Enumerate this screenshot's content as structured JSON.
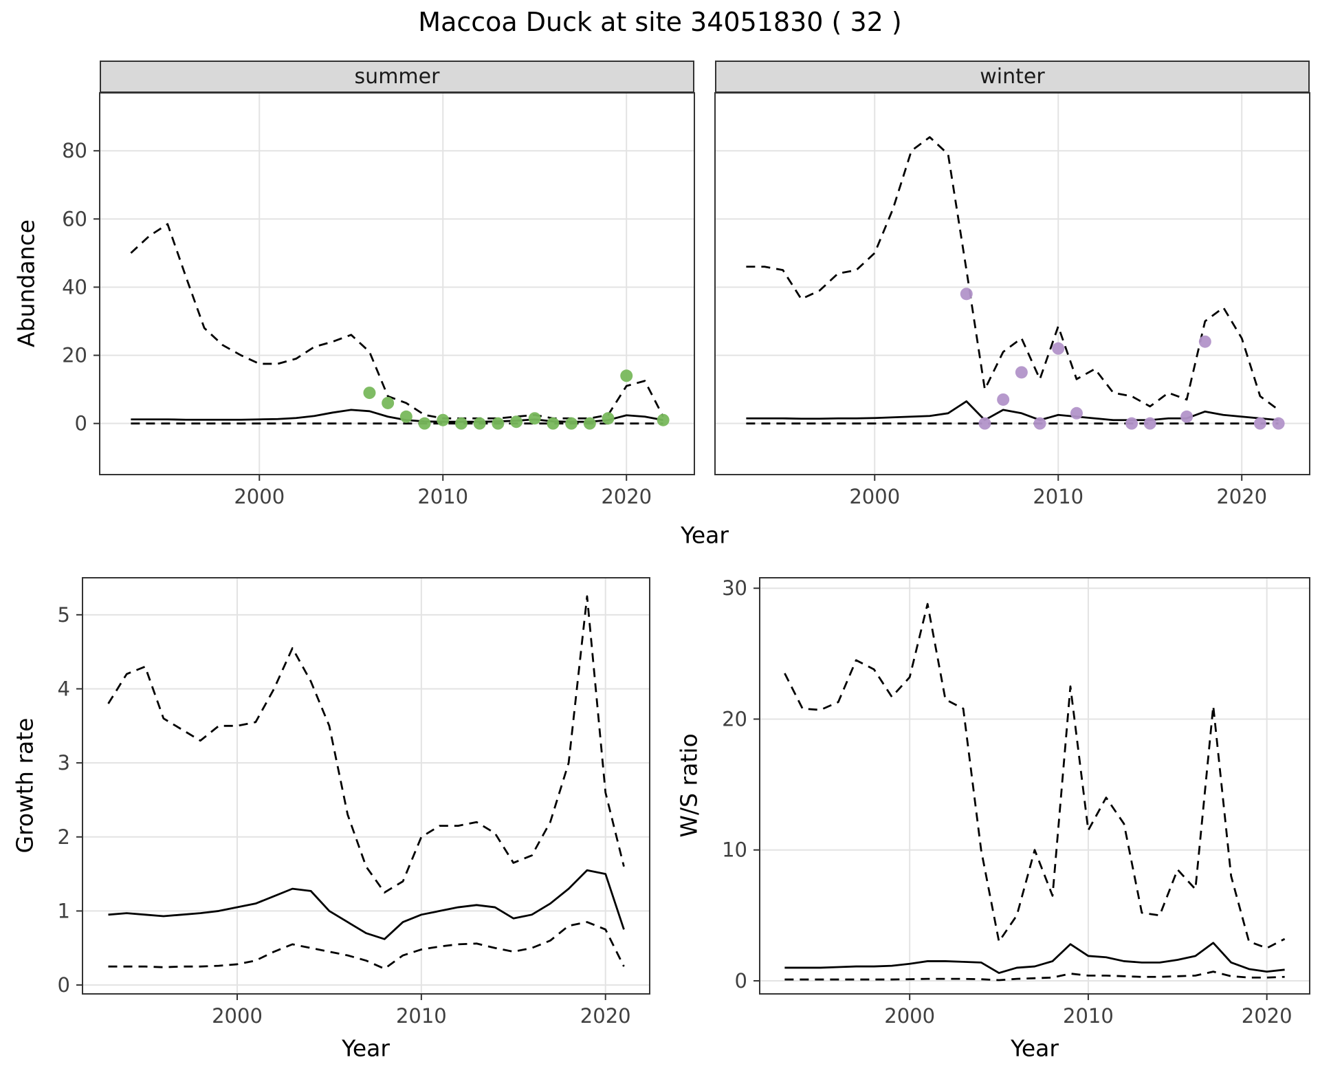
{
  "title": "Maccoa Duck at site 34051830 ( 32 )",
  "facets": {
    "summer": "summer",
    "winter": "winter"
  },
  "colors": {
    "line": "#000000",
    "grid": "#e3e3e3",
    "axis": "#333333",
    "tick_text": "#404040",
    "strip_bg": "#d9d9d9",
    "strip_border": "#333333",
    "summer_point": "#78b85c",
    "winter_point": "#b294c9"
  },
  "chart_data": [
    {
      "id": "abundance-summer",
      "type": "line",
      "facet": "summer",
      "ylabel": "Abundance",
      "xlabel": "Year",
      "xlim": [
        1991.3,
        2023.7
      ],
      "ylim": [
        -15,
        97
      ],
      "xticks": [
        2000,
        2010,
        2020
      ],
      "yticks": [
        0,
        20,
        40,
        60,
        80
      ],
      "x": [
        1993,
        1994,
        1995,
        1996,
        1997,
        1998,
        1999,
        2000,
        2001,
        2002,
        2003,
        2004,
        2005,
        2006,
        2007,
        2008,
        2009,
        2010,
        2011,
        2012,
        2013,
        2014,
        2015,
        2016,
        2017,
        2018,
        2019,
        2020,
        2021,
        2022
      ],
      "series": [
        {
          "name": "upper_ci",
          "style": "dashed",
          "y": [
            50,
            55,
            58.5,
            43,
            28,
            23,
            20,
            17.5,
            17.5,
            19,
            22.5,
            24,
            26,
            21,
            8,
            6,
            2.5,
            1.5,
            1.5,
            1.5,
            1.5,
            2,
            2.5,
            1.5,
            1.5,
            1.5,
            2.5,
            11,
            12.5,
            2
          ]
        },
        {
          "name": "median",
          "style": "solid",
          "y": [
            1.2,
            1.2,
            1.2,
            1.1,
            1.1,
            1.1,
            1.1,
            1.2,
            1.3,
            1.6,
            2.2,
            3.2,
            4,
            3.6,
            2,
            1,
            0.6,
            0.5,
            0.5,
            0.5,
            0.6,
            0.8,
            1.2,
            0.6,
            0.5,
            0.5,
            1,
            2.4,
            2,
            1
          ]
        },
        {
          "name": "lower_ci",
          "style": "dashed",
          "y": [
            0,
            0,
            0,
            0,
            0,
            0,
            0,
            0,
            0,
            0,
            0,
            0,
            0,
            0,
            0,
            0,
            0,
            0,
            0,
            0,
            0,
            0,
            0,
            0,
            0,
            0,
            0,
            0,
            0,
            0
          ]
        }
      ],
      "points": {
        "name": "summer-observations",
        "color": "#78b85c",
        "x": [
          2006,
          2007,
          2008,
          2009,
          2010,
          2011,
          2012,
          2013,
          2014,
          2015,
          2016,
          2017,
          2018,
          2019,
          2020,
          2022
        ],
        "y": [
          9,
          6,
          2,
          0,
          1,
          0,
          0,
          0,
          0.5,
          1.5,
          0,
          0,
          0,
          1.5,
          14,
          1
        ]
      }
    },
    {
      "id": "abundance-winter",
      "type": "line",
      "facet": "winter",
      "xlim": [
        1991.3,
        2023.7
      ],
      "ylim": [
        -15,
        97
      ],
      "xticks": [
        2000,
        2010,
        2020
      ],
      "yticks": [
        0,
        20,
        40,
        60,
        80
      ],
      "x": [
        1993,
        1994,
        1995,
        1996,
        1997,
        1998,
        1999,
        2000,
        2001,
        2002,
        2003,
        2004,
        2005,
        2006,
        2007,
        2008,
        2009,
        2010,
        2011,
        2012,
        2013,
        2014,
        2015,
        2016,
        2017,
        2018,
        2019,
        2020,
        2021,
        2022
      ],
      "series": [
        {
          "name": "upper_ci",
          "style": "dashed",
          "y": [
            46,
            46,
            45,
            36.5,
            39,
            44,
            45,
            50,
            63,
            80,
            84,
            79,
            45,
            10,
            21,
            25,
            13,
            28.5,
            13,
            16,
            9,
            8,
            5,
            9,
            7,
            30,
            34,
            25,
            8,
            4
          ]
        },
        {
          "name": "median",
          "style": "solid",
          "y": [
            1.5,
            1.5,
            1.5,
            1.4,
            1.4,
            1.5,
            1.5,
            1.6,
            1.8,
            2,
            2.2,
            3,
            6.5,
            1,
            4,
            3,
            1,
            2.5,
            2,
            1.5,
            1,
            1,
            1,
            1.5,
            1.5,
            3.5,
            2.5,
            2,
            1.5,
            1
          ]
        },
        {
          "name": "lower_ci",
          "style": "dashed",
          "y": [
            0,
            0,
            0,
            0,
            0,
            0,
            0,
            0,
            0,
            0,
            0,
            0,
            0,
            0,
            0,
            0,
            0,
            0,
            0,
            0,
            0,
            0,
            0,
            0,
            0,
            0,
            0,
            0,
            0,
            0
          ]
        }
      ],
      "points": {
        "name": "winter-observations",
        "color": "#b294c9",
        "x": [
          2005,
          2006,
          2007,
          2008,
          2009,
          2010,
          2011,
          2014,
          2015,
          2017,
          2018,
          2021,
          2022
        ],
        "y": [
          38,
          0,
          7,
          15,
          0,
          22,
          3,
          0,
          0,
          2,
          24,
          0,
          0
        ]
      }
    },
    {
      "id": "growth-rate",
      "type": "line",
      "ylabel": "Growth rate",
      "xlabel": "Year",
      "xlim": [
        1991.6,
        2022.4
      ],
      "ylim": [
        -0.12,
        5.5
      ],
      "xticks": [
        2000,
        2010,
        2020
      ],
      "yticks": [
        0,
        1,
        2,
        3,
        4,
        5
      ],
      "x": [
        1993,
        1994,
        1995,
        1996,
        1997,
        1998,
        1999,
        2000,
        2001,
        2002,
        2003,
        2004,
        2005,
        2006,
        2007,
        2008,
        2009,
        2010,
        2011,
        2012,
        2013,
        2014,
        2015,
        2016,
        2017,
        2018,
        2019,
        2020,
        2021
      ],
      "series": [
        {
          "name": "upper_ci",
          "style": "dashed",
          "y": [
            3.8,
            4.2,
            4.3,
            3.6,
            3.45,
            3.3,
            3.5,
            3.5,
            3.55,
            4,
            4.55,
            4.1,
            3.5,
            2.3,
            1.6,
            1.25,
            1.4,
            2,
            2.15,
            2.15,
            2.2,
            2.05,
            1.65,
            1.75,
            2.2,
            3,
            5.25,
            2.6,
            1.6
          ]
        },
        {
          "name": "median",
          "style": "solid",
          "y": [
            0.95,
            0.97,
            0.95,
            0.93,
            0.95,
            0.97,
            1,
            1.05,
            1.1,
            1.2,
            1.3,
            1.27,
            1,
            0.85,
            0.7,
            0.62,
            0.85,
            0.95,
            1,
            1.05,
            1.08,
            1.05,
            0.9,
            0.95,
            1.1,
            1.3,
            1.55,
            1.5,
            0.75
          ]
        },
        {
          "name": "lower_ci",
          "style": "dashed",
          "y": [
            0.25,
            0.25,
            0.25,
            0.24,
            0.25,
            0.25,
            0.26,
            0.28,
            0.33,
            0.45,
            0.55,
            0.5,
            0.45,
            0.4,
            0.33,
            0.22,
            0.4,
            0.48,
            0.52,
            0.55,
            0.56,
            0.5,
            0.45,
            0.5,
            0.6,
            0.8,
            0.85,
            0.75,
            0.25
          ]
        }
      ]
    },
    {
      "id": "ws-ratio",
      "type": "line",
      "ylabel": "W/S ratio",
      "xlabel": "Year",
      "xlim": [
        1991.6,
        2022.4
      ],
      "ylim": [
        -1,
        30.8
      ],
      "xticks": [
        2000,
        2010,
        2020
      ],
      "yticks": [
        0,
        10,
        20,
        30
      ],
      "x": [
        1993,
        1994,
        1995,
        1996,
        1997,
        1998,
        1999,
        2000,
        2001,
        2002,
        2003,
        2004,
        2005,
        2006,
        2007,
        2008,
        2009,
        2010,
        2011,
        2012,
        2013,
        2014,
        2015,
        2016,
        2017,
        2018,
        2019,
        2020,
        2021
      ],
      "series": [
        {
          "name": "upper_ci",
          "style": "dashed",
          "y": [
            23.5,
            20.8,
            20.7,
            21.3,
            24.5,
            23.8,
            21.7,
            23.2,
            28.8,
            21.5,
            20.8,
            10,
            3,
            5,
            10,
            6.5,
            22.5,
            11.5,
            14,
            12,
            5.2,
            5,
            8.5,
            7,
            21,
            8,
            3,
            2.5,
            3.2
          ]
        },
        {
          "name": "median",
          "style": "solid",
          "y": [
            1,
            1,
            1,
            1.05,
            1.1,
            1.1,
            1.15,
            1.3,
            1.5,
            1.5,
            1.45,
            1.4,
            0.6,
            1,
            1.1,
            1.5,
            2.8,
            1.9,
            1.8,
            1.5,
            1.4,
            1.4,
            1.6,
            1.9,
            2.9,
            1.4,
            0.9,
            0.7,
            0.85
          ]
        },
        {
          "name": "lower_ci",
          "style": "dashed",
          "y": [
            0.1,
            0.1,
            0.1,
            0.1,
            0.1,
            0.1,
            0.1,
            0.12,
            0.15,
            0.15,
            0.15,
            0.12,
            0.05,
            0.15,
            0.2,
            0.25,
            0.55,
            0.4,
            0.4,
            0.35,
            0.3,
            0.3,
            0.35,
            0.4,
            0.7,
            0.35,
            0.25,
            0.25,
            0.3
          ]
        }
      ]
    }
  ]
}
